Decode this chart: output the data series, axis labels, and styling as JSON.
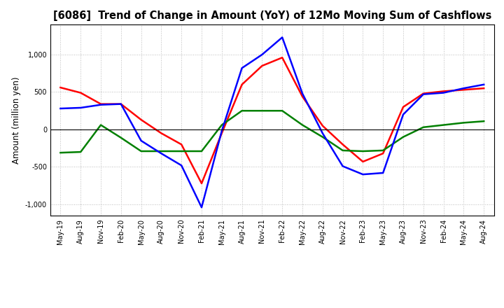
{
  "title": "[6086]  Trend of Change in Amount (YoY) of 12Mo Moving Sum of Cashflows",
  "ylabel": "Amount (million yen)",
  "x_labels": [
    "May-19",
    "Aug-19",
    "Nov-19",
    "Feb-20",
    "May-20",
    "Aug-20",
    "Nov-20",
    "Feb-21",
    "May-21",
    "Aug-21",
    "Nov-21",
    "Feb-22",
    "May-22",
    "Aug-22",
    "Nov-22",
    "Feb-23",
    "May-23",
    "Aug-23",
    "Nov-23",
    "Feb-24",
    "May-24",
    "Aug-24"
  ],
  "operating": [
    560,
    490,
    340,
    340,
    130,
    -50,
    -200,
    -720,
    -50,
    600,
    850,
    960,
    440,
    50,
    -200,
    -430,
    -320,
    300,
    480,
    510,
    530,
    550
  ],
  "investing": [
    -310,
    -300,
    60,
    -110,
    -290,
    -290,
    -290,
    -290,
    60,
    250,
    250,
    250,
    60,
    -100,
    -280,
    -290,
    -280,
    -100,
    30,
    60,
    90,
    110
  ],
  "free": [
    280,
    290,
    330,
    340,
    -150,
    -320,
    -480,
    -1040,
    -20,
    820,
    1000,
    1230,
    480,
    -50,
    -490,
    -600,
    -580,
    200,
    470,
    490,
    550,
    600
  ],
  "ylim": [
    -1150,
    1400
  ],
  "yticks": [
    -1000,
    -500,
    0,
    500,
    1000
  ],
  "operating_color": "#ff0000",
  "investing_color": "#008000",
  "free_color": "#0000ff",
  "bg_color": "#ffffff",
  "grid_color": "#bbbbbb",
  "linewidth": 1.8
}
